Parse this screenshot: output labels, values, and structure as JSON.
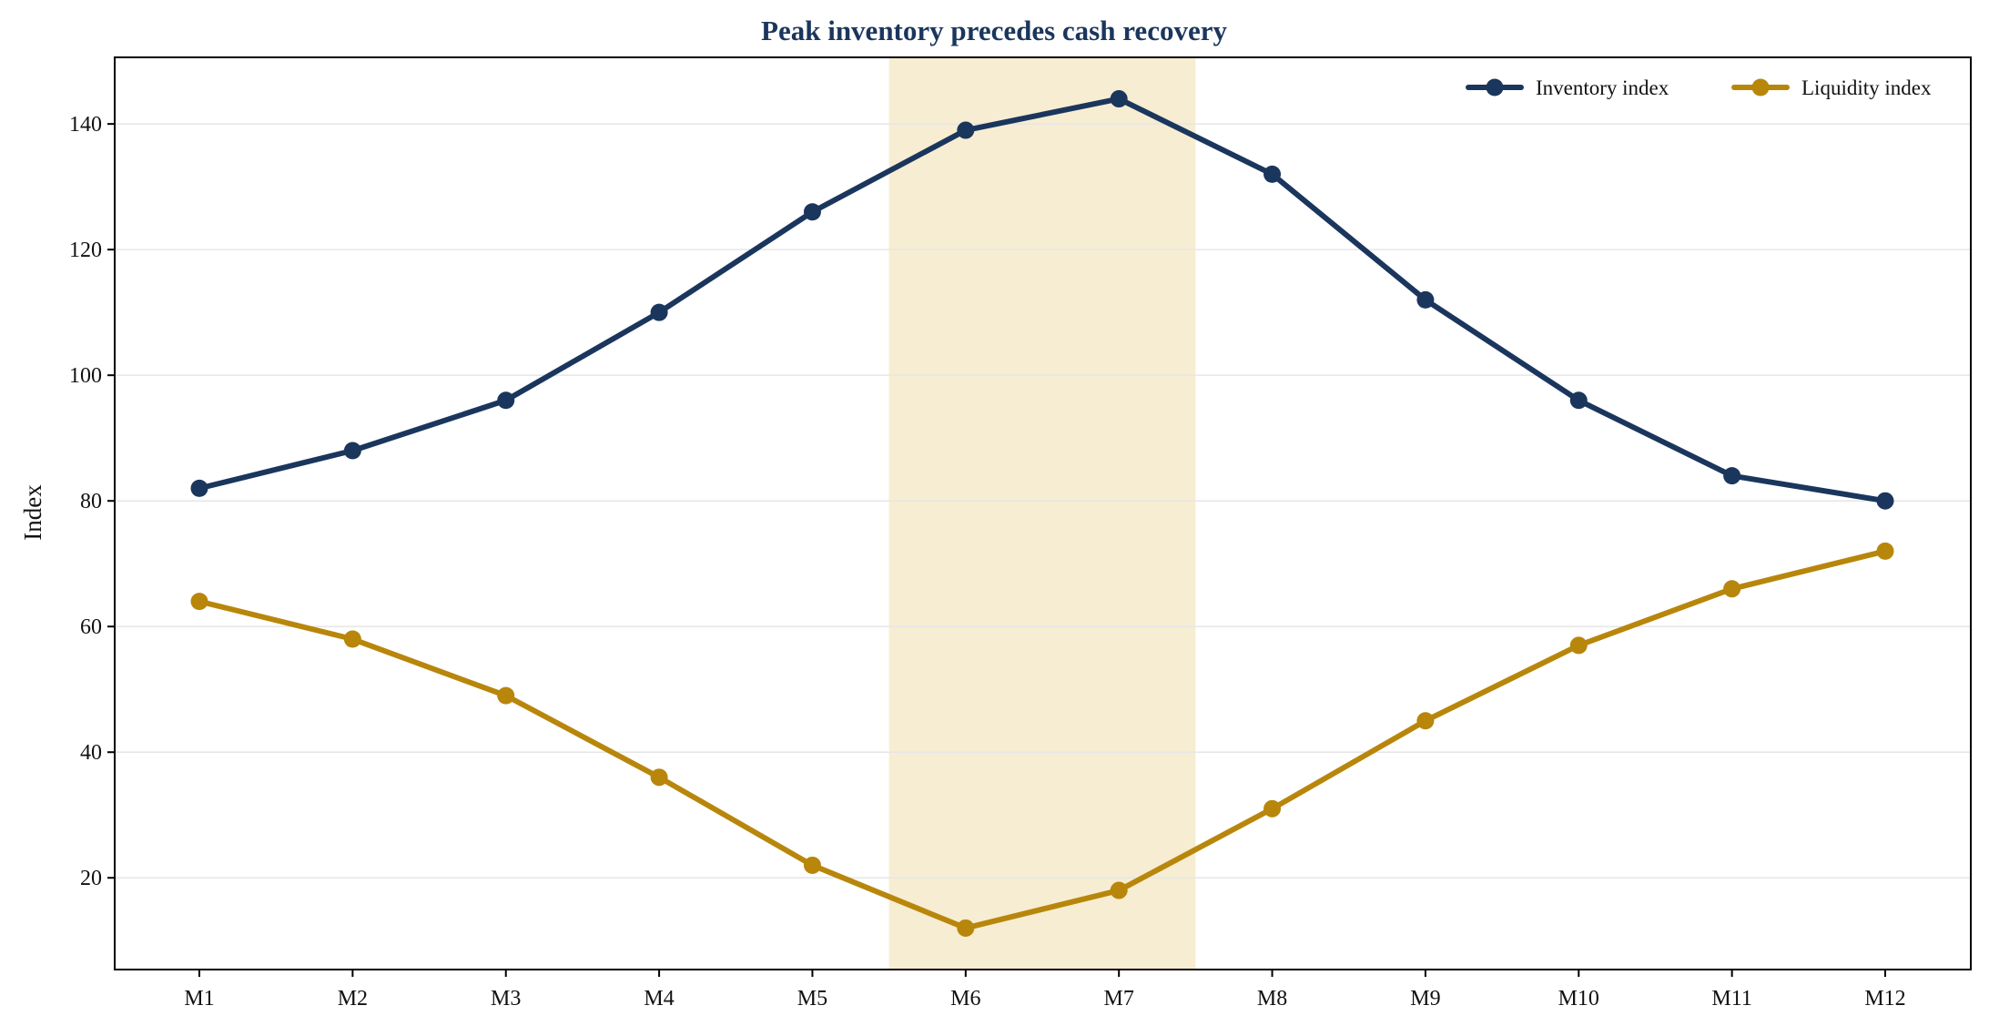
{
  "chart_data": {
    "type": "line",
    "title": "Peak inventory precedes cash recovery",
    "xlabel": "",
    "ylabel": "Index",
    "categories": [
      "M1",
      "M2",
      "M3",
      "M4",
      "M5",
      "M6",
      "M7",
      "M8",
      "M9",
      "M10",
      "M11",
      "M12"
    ],
    "series": [
      {
        "name": "Inventory index",
        "color": "#1b365d",
        "values": [
          82,
          88,
          96,
          110,
          126,
          139,
          144,
          132,
          112,
          96,
          84,
          80
        ]
      },
      {
        "name": "Liquidity index",
        "color": "#b8860b",
        "values": [
          64,
          58,
          49,
          36,
          22,
          12,
          18,
          31,
          45,
          57,
          66,
          72
        ]
      }
    ],
    "ylim": [
      5.4,
      150.6
    ],
    "yticks": [
      20,
      40,
      60,
      80,
      100,
      120,
      140
    ],
    "grid": "horizontal",
    "legend": "top-right",
    "highlight": {
      "from_category": "M6",
      "to_category": "M7",
      "color": "#f7edd2"
    },
    "title_color": "#1b365d"
  }
}
